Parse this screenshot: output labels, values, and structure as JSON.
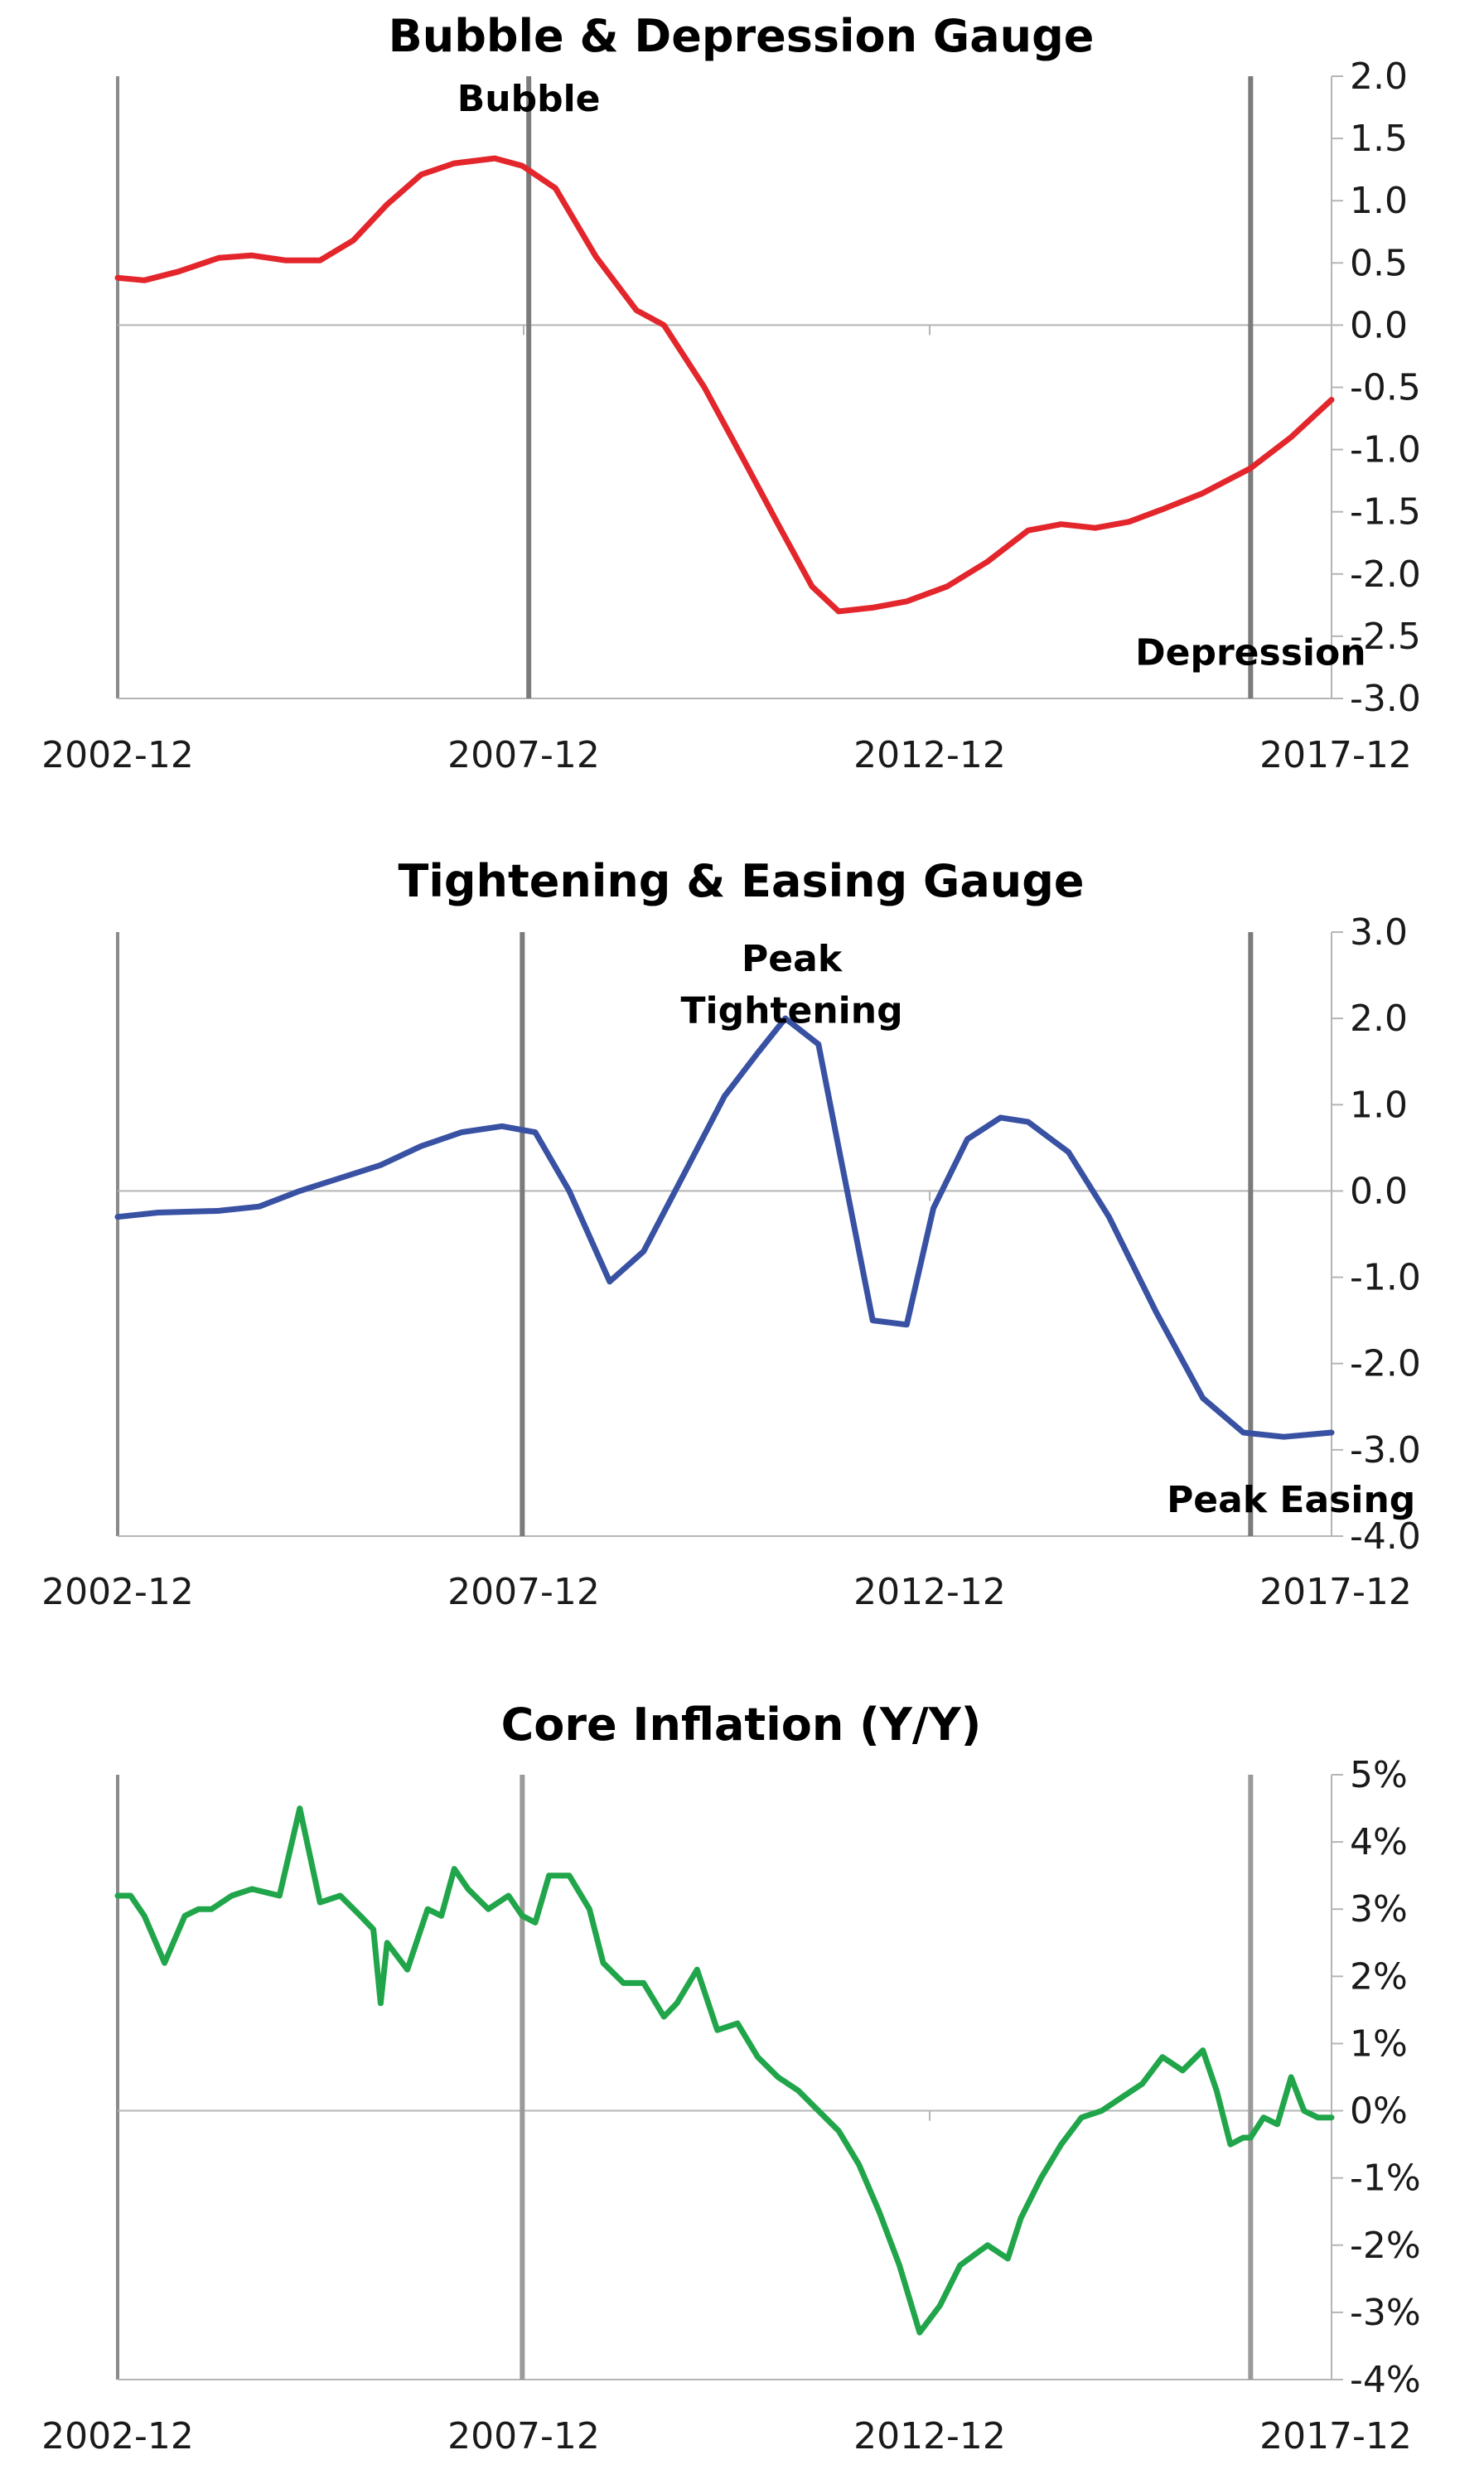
{
  "chart_data": [
    {
      "type": "line",
      "title": "Bubble & Depression Gauge",
      "xlabel": "",
      "ylabel": "",
      "x_ticks": [
        "2002-12",
        "2007-12",
        "2012-12",
        "2017-12"
      ],
      "x_range": [
        2002.92,
        2017.92
      ],
      "ylim": [
        -3.0,
        2.0
      ],
      "y_ticks": [
        "2.0",
        "1.5",
        "1.0",
        "0.5",
        "0.0",
        "-0.5",
        "-1.0",
        "-1.5",
        "-2.0",
        "-2.5",
        "-3.0"
      ],
      "y_axis_side": "right",
      "vertical_markers": [
        2008.0,
        2016.92
      ],
      "grid": false,
      "series": [
        {
          "color": "#e3262b",
          "x": [
            2002.92,
            2003.25,
            2003.67,
            2004.17,
            2004.58,
            2005.0,
            2005.42,
            2005.83,
            2006.25,
            2006.67,
            2007.08,
            2007.58,
            2007.92,
            2008.33,
            2008.83,
            2009.33,
            2009.67,
            2010.17,
            2010.67,
            2011.08,
            2011.5,
            2011.83,
            2012.25,
            2012.67,
            2013.17,
            2013.67,
            2014.17,
            2014.58,
            2015.0,
            2015.42,
            2015.83,
            2016.33,
            2016.92,
            2017.42,
            2017.92
          ],
          "y": [
            0.38,
            0.36,
            0.43,
            0.54,
            0.56,
            0.52,
            0.52,
            0.68,
            0.97,
            1.21,
            1.3,
            1.34,
            1.28,
            1.1,
            0.55,
            0.12,
            0.0,
            -0.5,
            -1.1,
            -1.6,
            -2.1,
            -2.3,
            -2.27,
            -2.22,
            -2.1,
            -1.9,
            -1.65,
            -1.6,
            -1.63,
            -1.58,
            -1.48,
            -1.35,
            -1.15,
            -0.9,
            -0.6
          ]
        }
      ],
      "annotations": [
        {
          "text": "Bubble",
          "x": 2008.0,
          "y": 1.72
        },
        {
          "text": "Depression",
          "x": 2016.92,
          "y": -2.73
        }
      ]
    },
    {
      "type": "line",
      "title": "Tightening & Easing Gauge",
      "xlabel": "",
      "ylabel": "",
      "x_ticks": [
        "2002-12",
        "2007-12",
        "2012-12",
        "2017-12"
      ],
      "x_range": [
        2002.92,
        2017.92
      ],
      "ylim": [
        -4.0,
        3.0
      ],
      "y_ticks": [
        "3.0",
        "2.0",
        "1.0",
        "0.0",
        "-1.0",
        "-2.0",
        "-3.0",
        "-4.0"
      ],
      "y_axis_side": "right",
      "vertical_markers": [
        2007.92,
        2016.92
      ],
      "grid": false,
      "series": [
        {
          "color": "#3851a2",
          "x": [
            2002.92,
            2003.42,
            2004.17,
            2004.67,
            2005.17,
            2005.67,
            2006.17,
            2006.67,
            2007.17,
            2007.67,
            2008.08,
            2008.5,
            2009.0,
            2009.42,
            2009.92,
            2010.42,
            2010.83,
            2011.17,
            2011.58,
            2011.83,
            2012.25,
            2012.67,
            2013.0,
            2013.42,
            2013.83,
            2014.17,
            2014.67,
            2015.17,
            2015.75,
            2016.33,
            2016.83,
            2017.33,
            2017.92
          ],
          "y": [
            -0.3,
            -0.25,
            -0.23,
            -0.18,
            0.0,
            0.15,
            0.3,
            0.52,
            0.68,
            0.75,
            0.68,
            0.0,
            -1.05,
            -0.7,
            0.2,
            1.1,
            1.6,
            2.0,
            1.7,
            0.5,
            -1.5,
            -1.55,
            -0.2,
            0.6,
            0.85,
            0.8,
            0.45,
            -0.3,
            -1.4,
            -2.4,
            -2.8,
            -2.85,
            -2.8
          ]
        }
      ],
      "annotations": [
        {
          "text": "Peak",
          "x": 2011.25,
          "y": 2.55
        },
        {
          "text": "Tightening",
          "x": 2011.25,
          "y": 1.95
        },
        {
          "text": "Peak Easing",
          "x": 2017.42,
          "y": -3.72
        }
      ]
    },
    {
      "type": "line",
      "title": "Core Inflation (Y/Y)",
      "xlabel": "",
      "ylabel": "",
      "x_ticks": [
        "2002-12",
        "2007-12",
        "2012-12",
        "2017-12"
      ],
      "x_range": [
        2002.92,
        2017.92
      ],
      "ylim": [
        -4,
        5
      ],
      "y_ticks": [
        "5%",
        "4%",
        "3%",
        "2%",
        "1%",
        "0%",
        "-1%",
        "-2%",
        "-3%",
        "-4%"
      ],
      "y_axis_side": "right",
      "vertical_markers": [
        2007.92,
        2016.92
      ],
      "grid": false,
      "series": [
        {
          "color": "#21a54a",
          "x": [
            2002.92,
            2003.08,
            2003.25,
            2003.5,
            2003.75,
            2003.92,
            2004.08,
            2004.33,
            2004.58,
            2004.92,
            2005.17,
            2005.42,
            2005.67,
            2005.92,
            2006.08,
            2006.17,
            2006.25,
            2006.5,
            2006.75,
            2006.92,
            2007.08,
            2007.25,
            2007.5,
            2007.75,
            2007.92,
            2008.08,
            2008.25,
            2008.5,
            2008.75,
            2008.92,
            2009.17,
            2009.42,
            2009.67,
            2009.83,
            2010.08,
            2010.33,
            2010.58,
            2010.83,
            2011.08,
            2011.33,
            2011.58,
            2011.83,
            2012.08,
            2012.33,
            2012.58,
            2012.83,
            2013.08,
            2013.33,
            2013.67,
            2013.92,
            2014.08,
            2014.33,
            2014.58,
            2014.83,
            2015.08,
            2015.33,
            2015.58,
            2015.83,
            2016.08,
            2016.33,
            2016.5,
            2016.67,
            2016.83,
            2016.92,
            2017.08,
            2017.25,
            2017.42,
            2017.58,
            2017.75,
            2017.92
          ],
          "y": [
            3.2,
            3.2,
            2.9,
            2.2,
            2.9,
            3.0,
            3.0,
            3.2,
            3.3,
            3.2,
            4.5,
            3.1,
            3.2,
            2.9,
            2.7,
            1.6,
            2.5,
            2.1,
            3.0,
            2.9,
            3.6,
            3.3,
            3.0,
            3.2,
            2.9,
            2.8,
            3.5,
            3.5,
            3.0,
            2.2,
            1.9,
            1.9,
            1.4,
            1.6,
            2.1,
            1.2,
            1.3,
            0.8,
            0.5,
            0.3,
            0.0,
            -0.3,
            -0.8,
            -1.5,
            -2.3,
            -3.3,
            -2.9,
            -2.3,
            -2.0,
            -2.2,
            -1.6,
            -1.0,
            -0.5,
            -0.1,
            0.0,
            0.2,
            0.4,
            0.8,
            0.6,
            0.9,
            0.3,
            -0.5,
            -0.4,
            -0.4,
            -0.1,
            -0.2,
            0.5,
            0.0,
            -0.1,
            -0.1
          ]
        }
      ],
      "annotations": []
    }
  ]
}
